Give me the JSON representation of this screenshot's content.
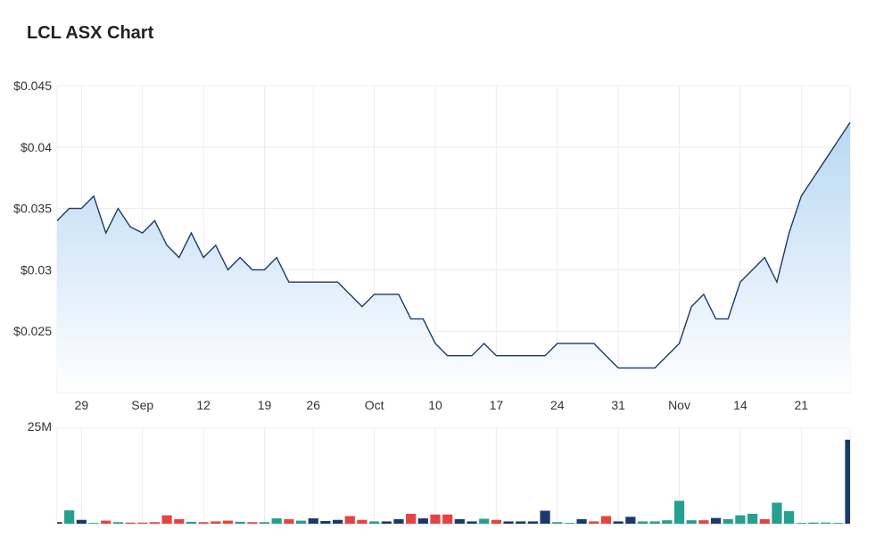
{
  "chart_data": {
    "type": "line",
    "title": "LCL ASX Chart",
    "colors": {
      "line": "#1b3a6b",
      "area_top": "#b5d6f2",
      "area_bottom": "#ffffff",
      "grid": "#ececec",
      "vol_teal": "#26a08f",
      "vol_red": "#e54343",
      "vol_navy": "#1b3a6b"
    },
    "price": {
      "ylim": [
        0.02,
        0.045
      ],
      "yticks": [
        {
          "value": 0.025,
          "label": "$0.025"
        },
        {
          "value": 0.03,
          "label": "$0.03"
        },
        {
          "value": 0.035,
          "label": "$0.035"
        },
        {
          "value": 0.04,
          "label": "$0.04"
        },
        {
          "value": 0.045,
          "label": "$0.045"
        }
      ],
      "xticks": [
        {
          "index": 2,
          "label": "29"
        },
        {
          "index": 7,
          "label": "Sep"
        },
        {
          "index": 12,
          "label": "12"
        },
        {
          "index": 17,
          "label": "19"
        },
        {
          "index": 21,
          "label": "26"
        },
        {
          "index": 26,
          "label": "Oct"
        },
        {
          "index": 31,
          "label": "10"
        },
        {
          "index": 36,
          "label": "17"
        },
        {
          "index": 41,
          "label": "24"
        },
        {
          "index": 46,
          "label": "31"
        },
        {
          "index": 51,
          "label": "Nov"
        },
        {
          "index": 56,
          "label": "14"
        },
        {
          "index": 61,
          "label": "21"
        }
      ],
      "values": [
        0.034,
        0.035,
        0.035,
        0.036,
        0.033,
        0.035,
        0.0335,
        0.033,
        0.034,
        0.032,
        0.031,
        0.033,
        0.031,
        0.032,
        0.03,
        0.031,
        0.03,
        0.03,
        0.031,
        0.029,
        0.029,
        0.029,
        0.029,
        0.029,
        0.028,
        0.027,
        0.028,
        0.028,
        0.028,
        0.026,
        0.026,
        0.024,
        0.023,
        0.023,
        0.023,
        0.024,
        0.023,
        0.023,
        0.023,
        0.023,
        0.023,
        0.024,
        0.024,
        0.024,
        0.024,
        0.023,
        0.022,
        0.022,
        0.022,
        0.022,
        0.023,
        0.024,
        0.027,
        0.028,
        0.026,
        0.026,
        0.029,
        0.03,
        0.031,
        0.029,
        0.033,
        0.036,
        0.0375,
        0.039,
        0.0405,
        0.042
      ]
    },
    "volume": {
      "ylim": [
        0,
        25
      ],
      "yticks": [
        {
          "value": 25,
          "label": "25M"
        }
      ],
      "values": [
        0.4,
        3.5,
        1.0,
        0.2,
        0.8,
        0.4,
        0.3,
        0.3,
        0.4,
        2.2,
        1.2,
        0.5,
        0.4,
        0.6,
        0.8,
        0.5,
        0.4,
        0.4,
        1.4,
        1.2,
        0.8,
        1.4,
        0.7,
        1.0,
        2.0,
        1.0,
        0.6,
        0.6,
        1.2,
        2.6,
        1.4,
        2.4,
        2.4,
        1.2,
        0.6,
        1.3,
        1.0,
        0.6,
        0.6,
        0.6,
        3.4,
        0.4,
        0.2,
        1.2,
        0.6,
        2.0,
        0.6,
        1.8,
        0.6,
        0.6,
        0.9,
        6.0,
        0.9,
        0.9,
        1.5,
        1.2,
        2.2,
        2.6,
        1.2,
        5.5,
        3.3,
        0.2,
        0.3,
        0.3,
        0.2,
        22.0
      ],
      "colors": [
        "navy",
        "teal",
        "navy",
        "teal",
        "red",
        "teal",
        "red",
        "red",
        "red",
        "red",
        "red",
        "teal",
        "red",
        "red",
        "red",
        "teal",
        "red",
        "teal",
        "teal",
        "red",
        "teal",
        "navy",
        "navy",
        "navy",
        "red",
        "red",
        "teal",
        "navy",
        "navy",
        "red",
        "navy",
        "red",
        "red",
        "navy",
        "navy",
        "teal",
        "red",
        "navy",
        "navy",
        "navy",
        "navy",
        "teal",
        "teal",
        "navy",
        "red",
        "red",
        "navy",
        "navy",
        "teal",
        "teal",
        "teal",
        "teal",
        "teal",
        "red",
        "navy",
        "teal",
        "teal",
        "teal",
        "red",
        "teal",
        "teal",
        "teal",
        "teal",
        "teal",
        "teal",
        "navy"
      ]
    }
  }
}
